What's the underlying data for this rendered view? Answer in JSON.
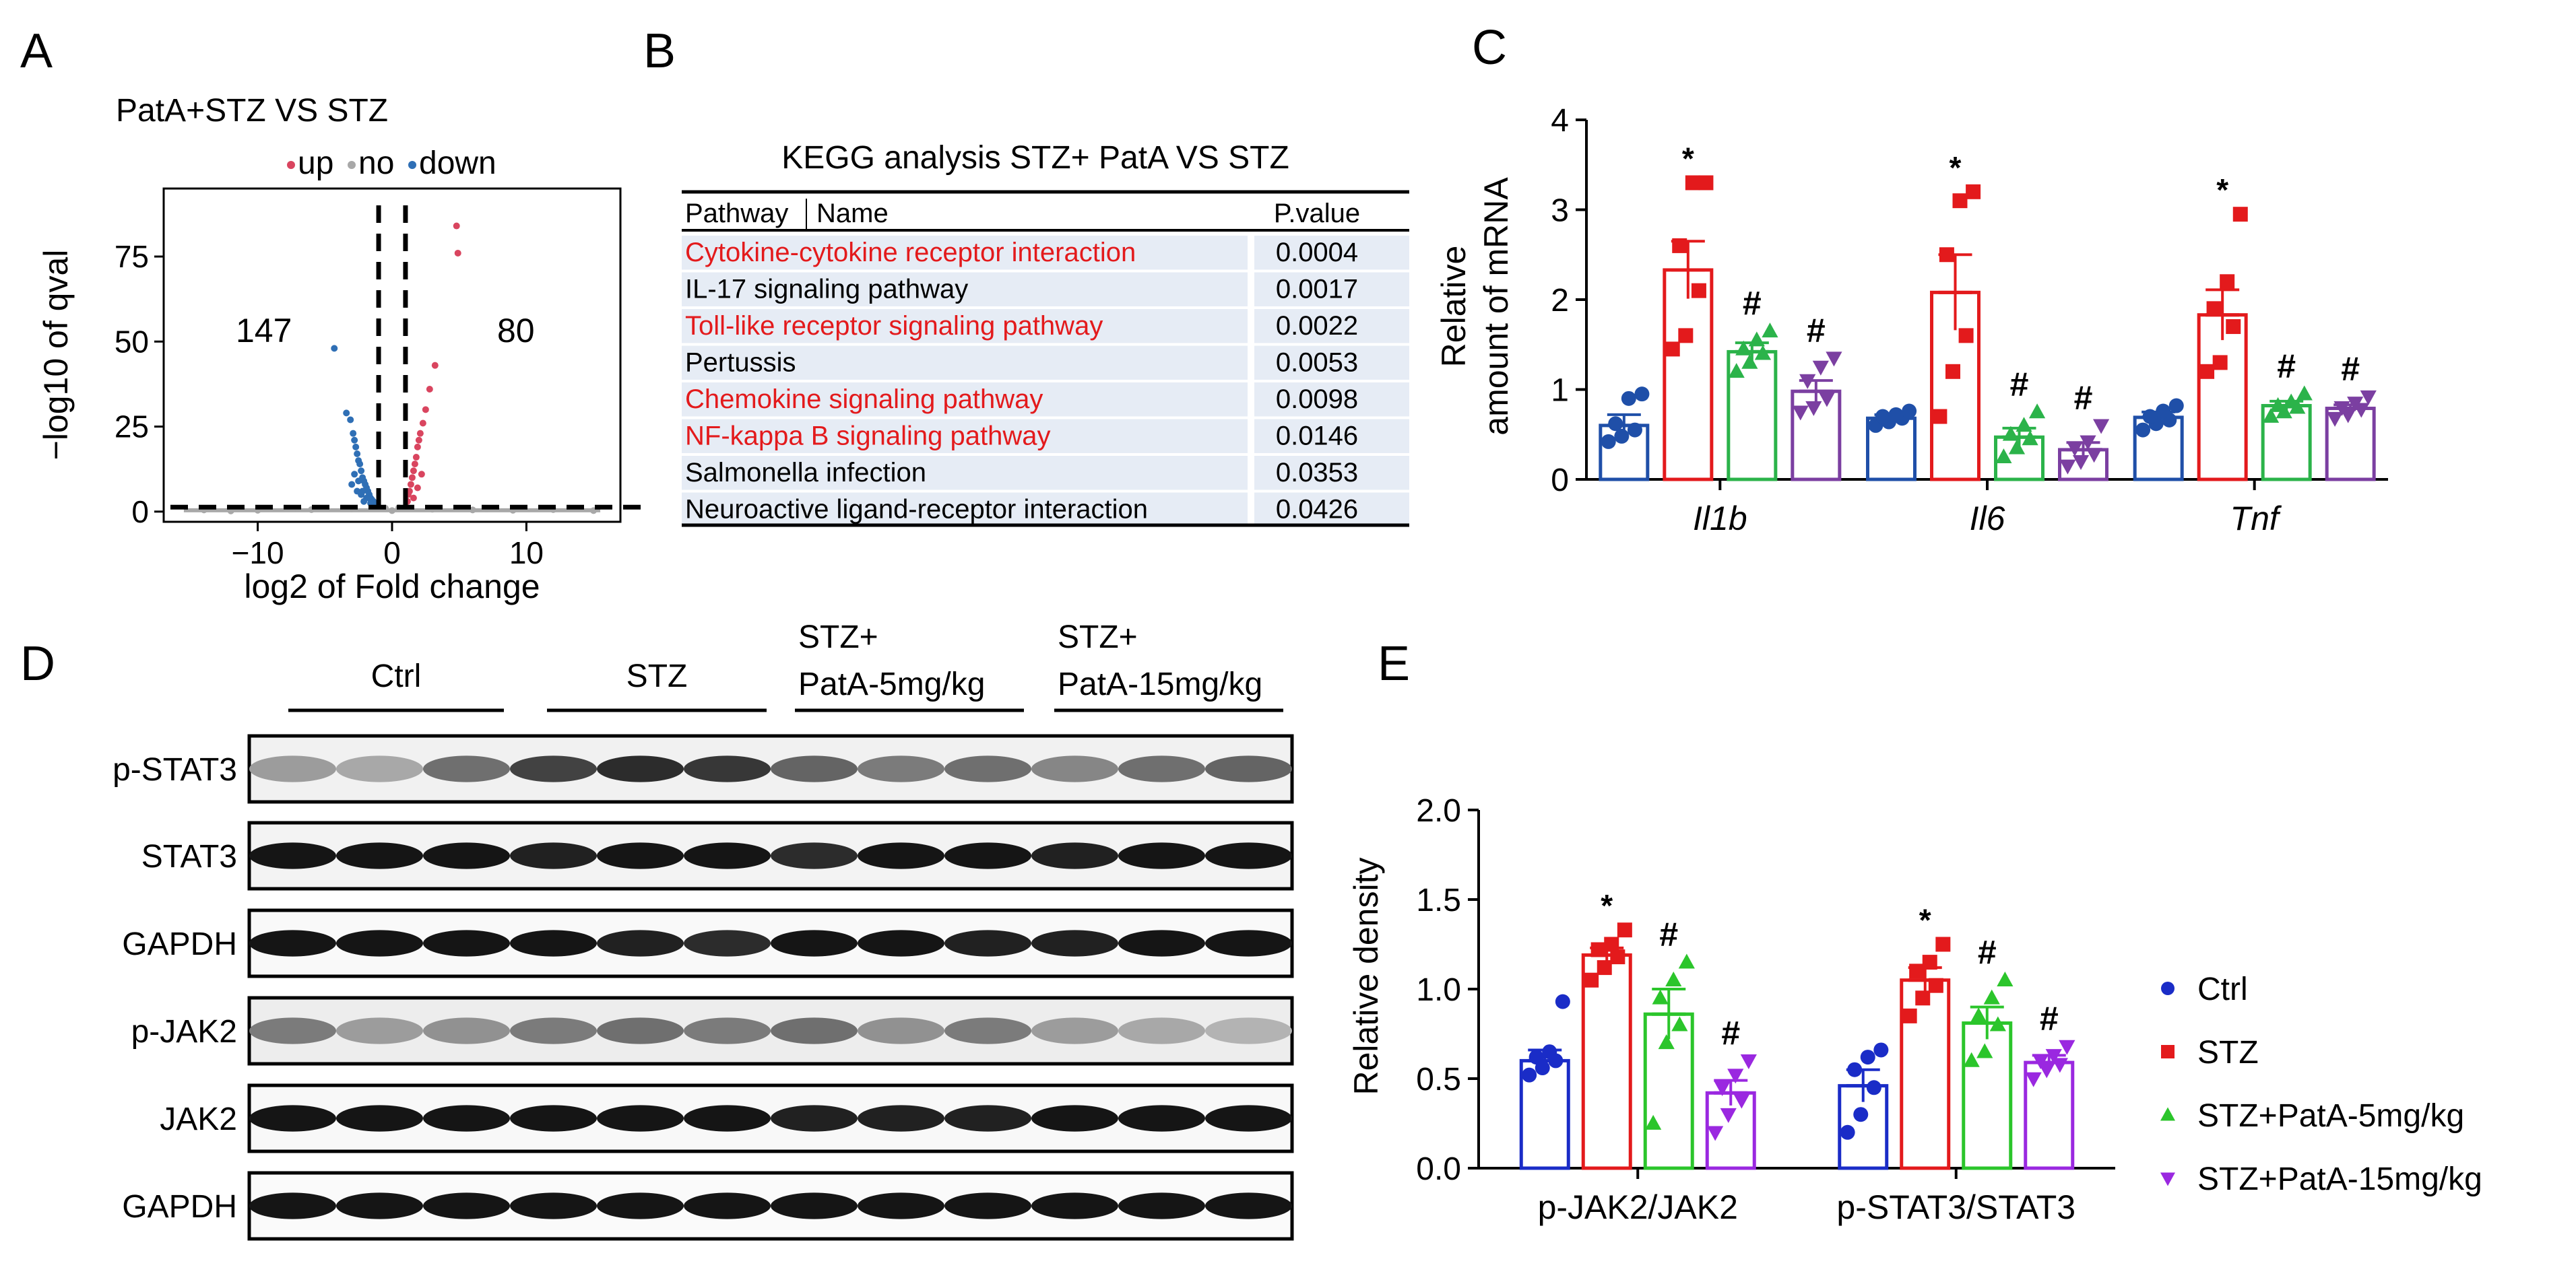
{
  "chart_data": [
    {
      "panel": "A",
      "type": "scatter",
      "title": "PatA+STZ VS STZ",
      "legend": [
        {
          "name": "up",
          "color": "#d9455f"
        },
        {
          "name": "no",
          "color": "#a8a8a8"
        },
        {
          "name": "down",
          "color": "#2f6fb5"
        }
      ],
      "xlabel": "log2 of Fold change",
      "ylabel": "−log10 of qval",
      "xlim": [
        -17,
        17
      ],
      "ylim": [
        -3,
        95
      ],
      "xticks": [
        {
          "value": -10,
          "label": "−10"
        },
        {
          "value": 0,
          "label": "0"
        },
        {
          "value": 10,
          "label": "10"
        }
      ],
      "yticks": [
        {
          "value": 0,
          "label": "0"
        },
        {
          "value": 25,
          "label": "25"
        },
        {
          "value": 50,
          "label": "50"
        },
        {
          "value": 75,
          "label": "75"
        }
      ],
      "down_count": "147",
      "up_count": "80",
      "vlines": [
        -1,
        1
      ],
      "hline": 1.3,
      "down_points": [
        [
          -4.3,
          48
        ],
        [
          -3.4,
          29
        ],
        [
          -3.1,
          27
        ],
        [
          -2.9,
          23
        ],
        [
          -2.8,
          21
        ],
        [
          -2.7,
          19
        ],
        [
          -2.6,
          17
        ],
        [
          -2.5,
          15
        ],
        [
          -2.4,
          14
        ],
        [
          -2.3,
          12
        ],
        [
          -2.2,
          10
        ],
        [
          -2.1,
          9
        ],
        [
          -2.0,
          8
        ],
        [
          -1.9,
          7
        ],
        [
          -1.8,
          6
        ],
        [
          -1.7,
          5
        ],
        [
          -1.6,
          4
        ],
        [
          -1.5,
          3.5
        ],
        [
          -1.4,
          3
        ],
        [
          -1.3,
          2.5
        ],
        [
          -1.2,
          2
        ],
        [
          -2.6,
          6
        ],
        [
          -2.3,
          5
        ],
        [
          -2.1,
          3
        ],
        [
          -1.9,
          4
        ],
        [
          -3.0,
          8
        ],
        [
          -2.8,
          11
        ],
        [
          -2.5,
          9
        ],
        [
          -2.2,
          6
        ],
        [
          -1.6,
          2.5
        ]
      ],
      "up_points": [
        [
          4.8,
          84
        ],
        [
          4.9,
          76
        ],
        [
          3.2,
          43
        ],
        [
          2.8,
          36
        ],
        [
          2.5,
          30
        ],
        [
          2.3,
          26
        ],
        [
          2.1,
          23
        ],
        [
          2.0,
          21
        ],
        [
          1.9,
          19
        ],
        [
          1.8,
          16
        ],
        [
          1.7,
          14
        ],
        [
          1.6,
          12
        ],
        [
          1.5,
          10
        ],
        [
          1.4,
          8
        ],
        [
          1.3,
          6
        ],
        [
          1.2,
          5
        ],
        [
          1.15,
          3
        ],
        [
          1.6,
          4
        ],
        [
          1.9,
          7
        ],
        [
          2.2,
          11
        ]
      ],
      "no_points": [
        [
          -14,
          0.5
        ],
        [
          -10,
          0.4
        ],
        [
          -6,
          0.6
        ],
        [
          -3,
          0.8
        ],
        [
          0,
          0.3
        ],
        [
          3,
          0.7
        ],
        [
          6,
          0.5
        ],
        [
          9,
          0.4
        ],
        [
          12,
          0.6
        ],
        [
          15,
          0.3
        ],
        [
          -0.5,
          1
        ],
        [
          0.5,
          1.1
        ],
        [
          -12,
          0.2
        ],
        [
          7,
          0.8
        ],
        [
          -7,
          0.9
        ]
      ]
    },
    {
      "panel": "C",
      "type": "bar",
      "ylabel_line1": "Relative",
      "ylabel_line2": "amount of mRNA",
      "ylim": [
        0,
        4
      ],
      "yticks": [
        "0",
        "1",
        "2",
        "3",
        "4"
      ],
      "categories": [
        "Il1b",
        "Il6",
        "Tnf"
      ],
      "series": [
        {
          "name": "Ctrl",
          "color": "#1f4fa8",
          "marker": "circle",
          "values": [
            0.6,
            0.68,
            0.69
          ],
          "errors": [
            0.12,
            0.04,
            0.06
          ],
          "sig": [
            "",
            "",
            ""
          ],
          "points": [
            [
              0.42,
              0.48,
              0.55,
              0.62,
              0.9,
              0.95
            ],
            [
              0.6,
              0.64,
              0.68,
              0.7,
              0.72,
              0.76
            ],
            [
              0.55,
              0.62,
              0.66,
              0.7,
              0.76,
              0.82
            ]
          ]
        },
        {
          "name": "STZ",
          "color": "#e31a1c",
          "marker": "square",
          "values": [
            2.33,
            2.08,
            1.83
          ],
          "errors": [
            0.32,
            0.42,
            0.28
          ],
          "sig": [
            "*",
            "*",
            "*"
          ],
          "points": [
            [
              1.45,
              1.6,
              2.1,
              2.6,
              3.3,
              3.3
            ],
            [
              0.7,
              1.2,
              1.6,
              2.5,
              3.1,
              3.2
            ],
            [
              1.2,
              1.3,
              1.7,
              1.9,
              2.2,
              2.95
            ]
          ]
        },
        {
          "name": "STZ+PatA-5mg/kg",
          "color": "#2bb34a",
          "marker": "triangle",
          "values": [
            1.42,
            0.47,
            0.82
          ],
          "errors": [
            0.1,
            0.1,
            0.05
          ],
          "sig": [
            "#",
            "#",
            "#"
          ],
          "points": [
            [
              1.2,
              1.3,
              1.4,
              1.45,
              1.55,
              1.65
            ],
            [
              0.25,
              0.35,
              0.45,
              0.5,
              0.6,
              0.75
            ],
            [
              0.7,
              0.75,
              0.8,
              0.82,
              0.86,
              0.95
            ]
          ]
        },
        {
          "name": "STZ+PatA-15mg/kg",
          "color": "#7b3fa1",
          "marker": "triangle-down",
          "values": [
            0.98,
            0.33,
            0.79
          ],
          "errors": [
            0.12,
            0.08,
            0.04
          ],
          "sig": [
            "#",
            "#",
            "#"
          ],
          "points": [
            [
              0.75,
              0.8,
              0.9,
              1.1,
              1.25,
              1.35
            ],
            [
              0.15,
              0.2,
              0.28,
              0.35,
              0.42,
              0.6
            ],
            [
              0.68,
              0.72,
              0.78,
              0.8,
              0.85,
              0.92
            ]
          ]
        }
      ]
    },
    {
      "panel": "E",
      "type": "bar",
      "ylabel": "Relative density",
      "ylim": [
        0,
        2.0
      ],
      "yticks": [
        "0.0",
        "0.5",
        "1.0",
        "1.5",
        "2.0"
      ],
      "categories": [
        "p-JAK2/JAK2",
        "p-STAT3/STAT3"
      ],
      "series": [
        {
          "name": "Ctrl",
          "color": "#1a2cc7",
          "marker": "circle",
          "values": [
            0.6,
            0.46
          ],
          "errors": [
            0.06,
            0.09
          ],
          "sig": [
            "",
            ""
          ],
          "points": [
            [
              0.52,
              0.56,
              0.6,
              0.62,
              0.65,
              0.93
            ],
            [
              0.2,
              0.3,
              0.45,
              0.55,
              0.62,
              0.66
            ]
          ]
        },
        {
          "name": "STZ",
          "color": "#e31a1c",
          "marker": "square",
          "values": [
            1.19,
            1.05
          ],
          "errors": [
            0.04,
            0.07
          ],
          "sig": [
            "*",
            "*"
          ],
          "points": [
            [
              1.05,
              1.12,
              1.18,
              1.22,
              1.25,
              1.33
            ],
            [
              0.85,
              0.95,
              1.02,
              1.1,
              1.15,
              1.25
            ]
          ]
        },
        {
          "name": "STZ+PatA-5mg/kg",
          "color": "#2bc52b",
          "marker": "triangle",
          "values": [
            0.86,
            0.81
          ],
          "errors": [
            0.14,
            0.09
          ],
          "sig": [
            "#",
            "#"
          ],
          "points": [
            [
              0.25,
              0.7,
              0.8,
              0.95,
              1.05,
              1.15
            ],
            [
              0.6,
              0.65,
              0.8,
              0.85,
              0.95,
              1.05
            ]
          ]
        },
        {
          "name": "STZ+PatA-15mg/kg",
          "color": "#9a28e0",
          "marker": "triangle-down",
          "values": [
            0.42,
            0.59
          ],
          "errors": [
            0.07,
            0.04
          ],
          "sig": [
            "#",
            "#"
          ],
          "points": [
            [
              0.2,
              0.3,
              0.38,
              0.45,
              0.52,
              0.6
            ],
            [
              0.5,
              0.55,
              0.58,
              0.6,
              0.63,
              0.68
            ]
          ]
        }
      ],
      "legend": [
        "Ctrl",
        "STZ",
        "STZ+PatA-5mg/kg",
        "STZ+PatA-15mg/kg"
      ]
    }
  ],
  "panel_labels": {
    "a": "A",
    "b": "B",
    "c": "C",
    "d": "D",
    "e": "E"
  },
  "kegg": {
    "title": "KEGG analysis STZ+ PatA  VS STZ",
    "col_pathway": "Pathway",
    "col_name": "Name",
    "col_pvalue": "P.value",
    "highlight_color": "#e31a1c",
    "rows": [
      {
        "name": "Cytokine-cytokine receptor interaction",
        "p": "0.0004",
        "highlight": true
      },
      {
        "name": "IL-17 signaling pathway",
        "p": "0.0017",
        "highlight": false
      },
      {
        "name": "Toll-like receptor signaling pathway",
        "p": "0.0022",
        "highlight": true
      },
      {
        "name": "Pertussis",
        "p": "0.0053",
        "highlight": false
      },
      {
        "name": "Chemokine signaling pathway",
        "p": "0.0098",
        "highlight": true
      },
      {
        "name": "NF-kappa B signaling pathway",
        "p": "0.0146",
        "highlight": true
      },
      {
        "name": "Salmonella infection",
        "p": "0.0353",
        "highlight": false
      },
      {
        "name": "Neuroactive ligand-receptor interaction",
        "p": "0.0426",
        "highlight": false
      }
    ]
  },
  "blot": {
    "groups": [
      {
        "line1": "Ctrl",
        "line2": ""
      },
      {
        "line1": "STZ",
        "line2": ""
      },
      {
        "line1": "STZ+",
        "line2": "PatA-5mg/kg"
      },
      {
        "line1": "STZ+",
        "line2": "PatA-15mg/kg"
      }
    ],
    "rows": [
      {
        "label": "p-STAT3",
        "intensity": [
          0.35,
          0.3,
          0.55,
          0.75,
          0.85,
          0.8,
          0.6,
          0.5,
          0.55,
          0.45,
          0.55,
          0.6
        ],
        "bg": 0.12
      },
      {
        "label": "STAT3",
        "intensity": [
          0.95,
          0.95,
          0.95,
          0.9,
          0.95,
          0.95,
          0.85,
          0.95,
          0.95,
          0.9,
          0.95,
          0.95
        ],
        "bg": 0.1
      },
      {
        "label": "GAPDH",
        "intensity": [
          0.95,
          0.95,
          0.95,
          0.95,
          0.9,
          0.85,
          0.95,
          0.95,
          0.9,
          0.9,
          0.95,
          0.95
        ],
        "bg": 0.05
      },
      {
        "label": "p-JAK2",
        "intensity": [
          0.5,
          0.35,
          0.4,
          0.5,
          0.55,
          0.5,
          0.55,
          0.4,
          0.5,
          0.35,
          0.3,
          0.25
        ],
        "bg": 0.15
      },
      {
        "label": "JAK2",
        "intensity": [
          0.95,
          0.95,
          0.95,
          0.95,
          0.95,
          0.95,
          0.9,
          0.9,
          0.9,
          0.95,
          0.95,
          0.95
        ],
        "bg": 0.06
      },
      {
        "label": "GAPDH",
        "intensity": [
          0.95,
          0.95,
          0.95,
          0.95,
          0.95,
          0.95,
          0.95,
          0.95,
          0.95,
          0.95,
          0.95,
          0.95
        ],
        "bg": 0.04
      }
    ]
  }
}
